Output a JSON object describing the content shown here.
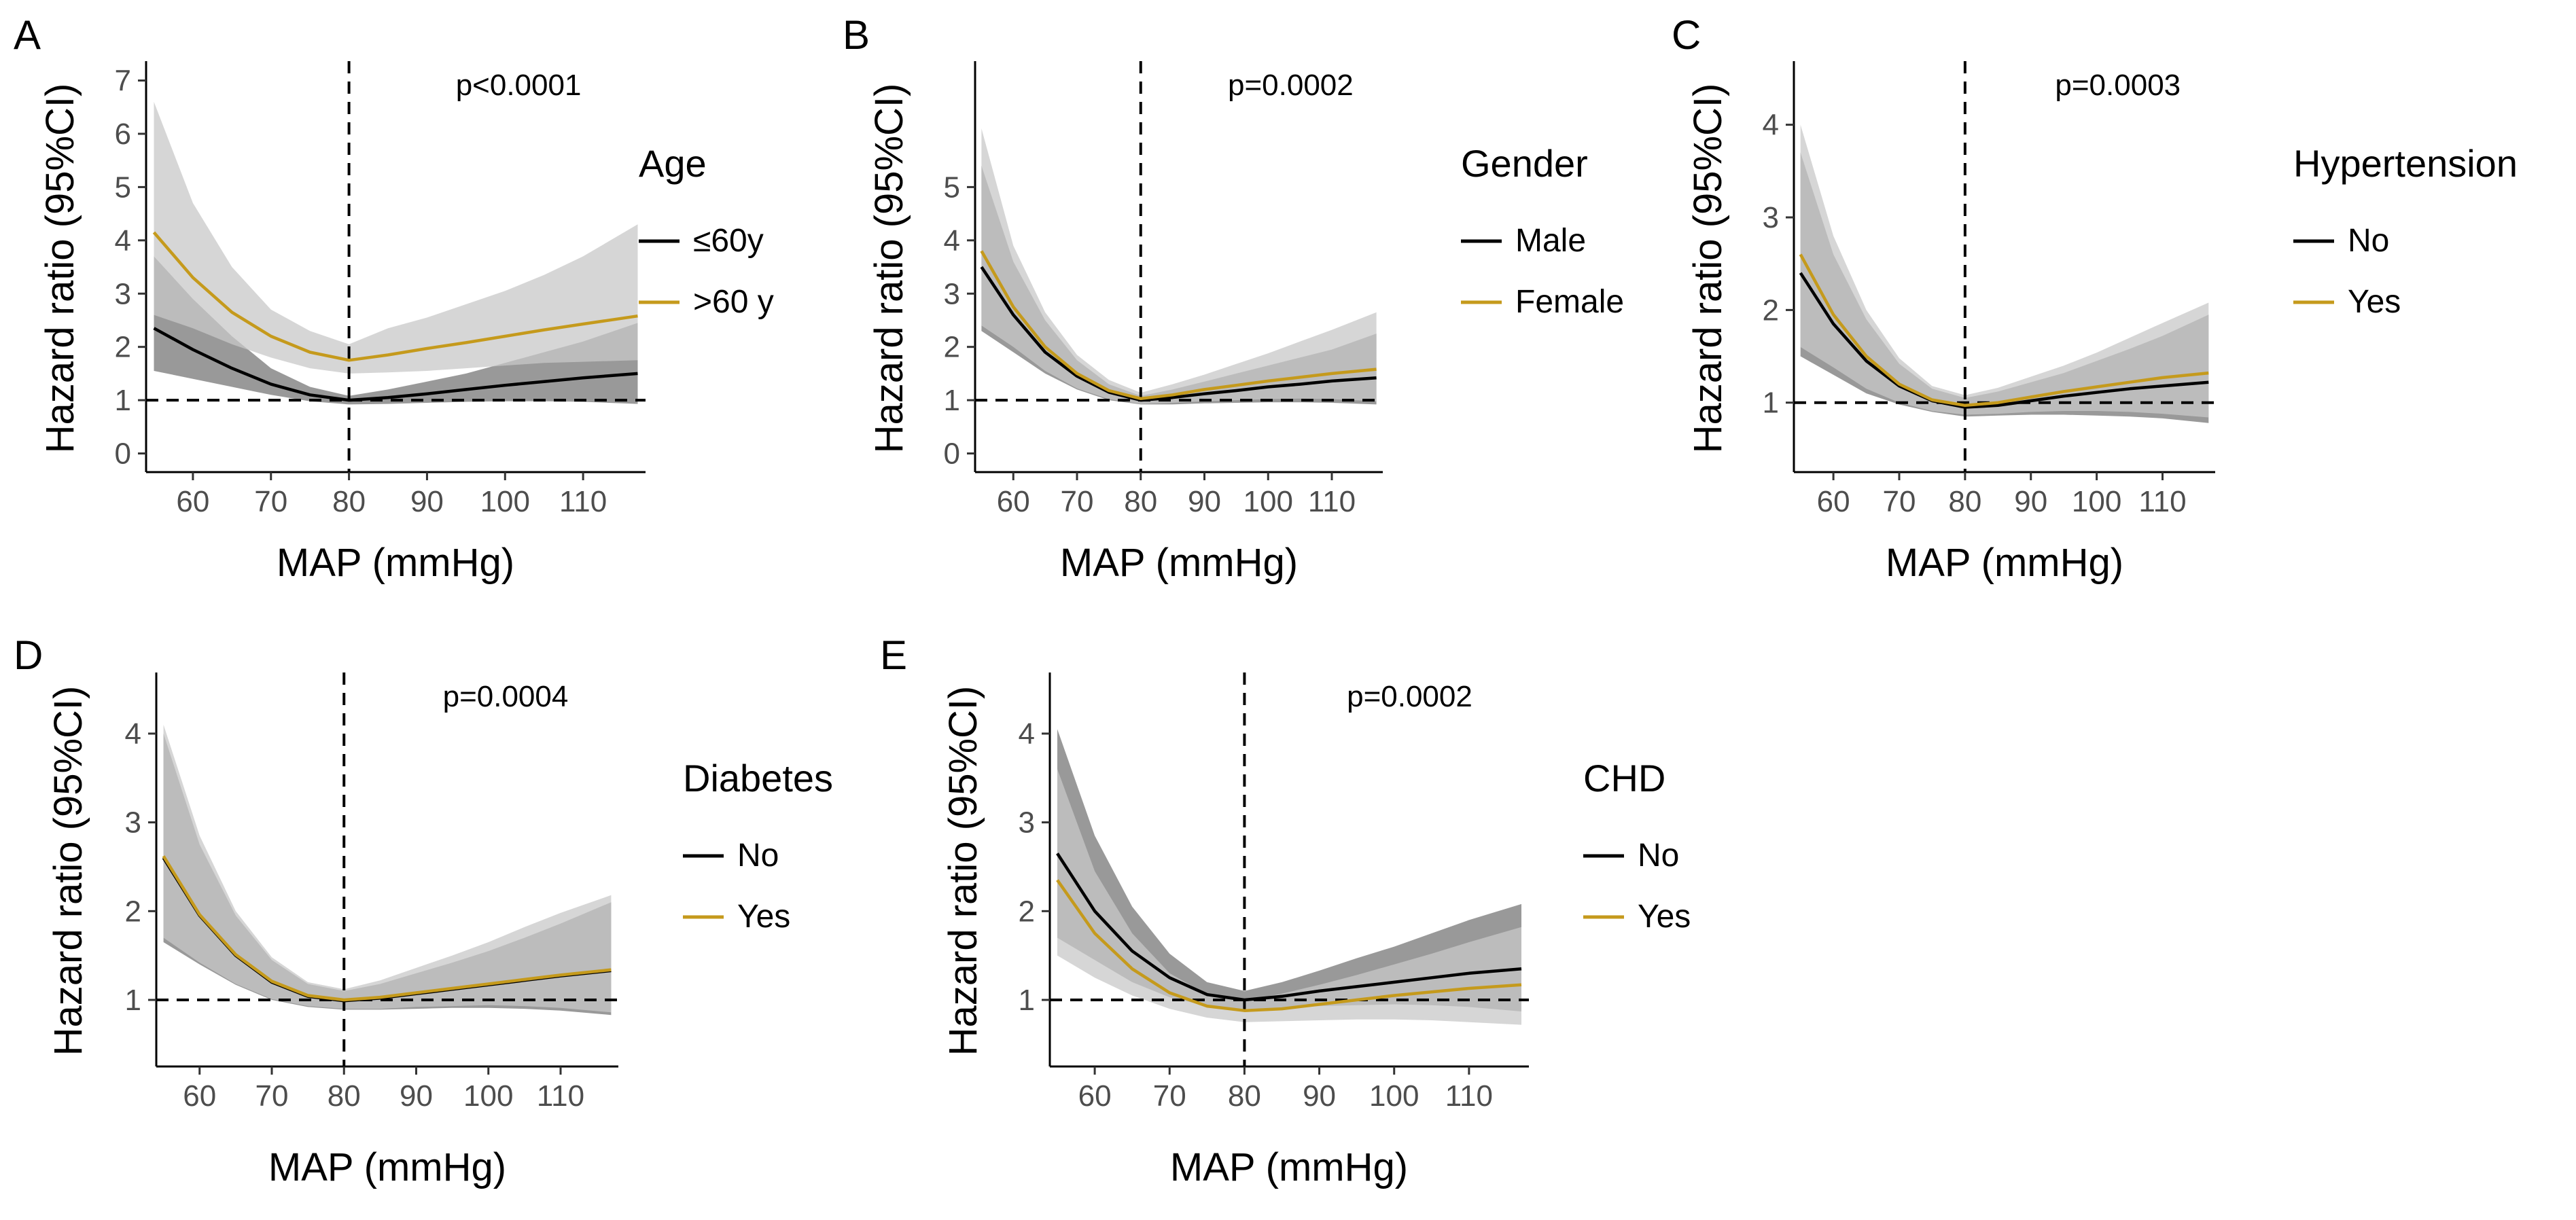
{
  "figure": {
    "x_label": "MAP (mmHg)",
    "y_label": "Hazard ratio (95%CI)"
  },
  "colors": {
    "series1_line": "#000000",
    "series2_line": "#c59a1c",
    "band_light": "#c8c8c8",
    "band_dark": "#6e6e6e"
  },
  "chart_data": [
    {
      "type": "line",
      "panel": "A",
      "p_value": "p<0.0001",
      "legend_title": "Age",
      "reference_x": 80,
      "reference_y": 1,
      "xlim": [
        54,
        118
      ],
      "ylim": [
        -0.35,
        7.3
      ],
      "x_ticks": [
        60,
        70,
        80,
        90,
        100,
        110
      ],
      "y_ticks": [
        0,
        1,
        2,
        3,
        4,
        5,
        6,
        7
      ],
      "series": [
        {
          "name": "≤60y",
          "x": [
            55,
            60,
            65,
            70,
            75,
            80,
            85,
            90,
            95,
            100,
            105,
            110,
            117
          ],
          "y": [
            2.35,
            1.95,
            1.6,
            1.3,
            1.1,
            1.0,
            1.05,
            1.12,
            1.2,
            1.28,
            1.35,
            1.42,
            1.5
          ],
          "lower": [
            1.55,
            1.4,
            1.25,
            1.1,
            0.98,
            0.92,
            0.93,
            0.95,
            0.97,
            0.98,
            0.98,
            0.97,
            0.93
          ],
          "upper": [
            3.7,
            2.9,
            2.2,
            1.6,
            1.25,
            1.08,
            1.2,
            1.35,
            1.5,
            1.7,
            1.9,
            2.1,
            2.45
          ]
        },
        {
          "name": ">60 y",
          "x": [
            55,
            60,
            65,
            70,
            75,
            80,
            85,
            90,
            95,
            100,
            105,
            110,
            117
          ],
          "y": [
            4.15,
            3.3,
            2.65,
            2.2,
            1.9,
            1.75,
            1.85,
            1.97,
            2.08,
            2.2,
            2.32,
            2.43,
            2.58
          ],
          "lower": [
            2.6,
            2.35,
            2.05,
            1.8,
            1.6,
            1.5,
            1.52,
            1.55,
            1.6,
            1.65,
            1.7,
            1.72,
            1.75
          ],
          "upper": [
            6.6,
            4.7,
            3.5,
            2.7,
            2.3,
            2.05,
            2.35,
            2.55,
            2.8,
            3.05,
            3.35,
            3.7,
            4.3
          ]
        }
      ]
    },
    {
      "type": "line",
      "panel": "B",
      "p_value": "p=0.0002",
      "legend_title": "Gender",
      "reference_x": 80,
      "reference_y": 1,
      "xlim": [
        54,
        118
      ],
      "ylim": [
        -0.35,
        7.3
      ],
      "x_ticks": [
        60,
        70,
        80,
        90,
        100,
        110
      ],
      "y_ticks": [
        0,
        1,
        2,
        3,
        4,
        5
      ],
      "series": [
        {
          "name": "Male",
          "x": [
            55,
            60,
            65,
            70,
            75,
            80,
            85,
            90,
            95,
            100,
            105,
            110,
            117
          ],
          "y": [
            3.5,
            2.6,
            1.9,
            1.45,
            1.15,
            1.0,
            1.05,
            1.12,
            1.18,
            1.25,
            1.3,
            1.36,
            1.42
          ],
          "lower": [
            2.3,
            1.9,
            1.5,
            1.2,
            1.0,
            0.92,
            0.92,
            0.94,
            0.95,
            0.96,
            0.96,
            0.95,
            0.92
          ],
          "upper": [
            5.4,
            3.6,
            2.5,
            1.75,
            1.3,
            1.08,
            1.2,
            1.35,
            1.5,
            1.65,
            1.8,
            1.95,
            2.25
          ]
        },
        {
          "name": "Female",
          "x": [
            55,
            60,
            65,
            70,
            75,
            80,
            85,
            90,
            95,
            100,
            105,
            110,
            117
          ],
          "y": [
            3.8,
            2.75,
            2.0,
            1.5,
            1.18,
            1.03,
            1.1,
            1.2,
            1.28,
            1.36,
            1.43,
            1.5,
            1.58
          ],
          "lower": [
            2.4,
            2.0,
            1.55,
            1.22,
            1.02,
            0.93,
            0.95,
            0.98,
            1.0,
            1.02,
            1.03,
            1.02,
            0.98
          ],
          "upper": [
            6.1,
            3.9,
            2.65,
            1.85,
            1.38,
            1.14,
            1.3,
            1.48,
            1.68,
            1.88,
            2.1,
            2.32,
            2.65
          ]
        }
      ]
    },
    {
      "type": "line",
      "panel": "C",
      "p_value": "p=0.0003",
      "legend_title": "Hypertension",
      "reference_x": 80,
      "reference_y": 1,
      "xlim": [
        54,
        118
      ],
      "ylim": [
        0.25,
        4.65
      ],
      "x_ticks": [
        60,
        70,
        80,
        90,
        100,
        110
      ],
      "y_ticks": [
        1,
        2,
        3,
        4
      ],
      "series": [
        {
          "name": "No",
          "x": [
            55,
            60,
            65,
            70,
            75,
            80,
            85,
            90,
            95,
            100,
            105,
            110,
            117
          ],
          "y": [
            2.4,
            1.85,
            1.45,
            1.18,
            1.02,
            0.95,
            0.97,
            1.02,
            1.07,
            1.11,
            1.15,
            1.18,
            1.22
          ],
          "lower": [
            1.5,
            1.3,
            1.1,
            0.98,
            0.9,
            0.85,
            0.86,
            0.87,
            0.87,
            0.86,
            0.85,
            0.83,
            0.78
          ],
          "upper": [
            3.7,
            2.6,
            1.9,
            1.42,
            1.15,
            1.05,
            1.12,
            1.22,
            1.32,
            1.45,
            1.58,
            1.72,
            1.95
          ]
        },
        {
          "name": "Yes",
          "x": [
            55,
            60,
            65,
            70,
            75,
            80,
            85,
            90,
            95,
            100,
            105,
            110,
            117
          ],
          "y": [
            2.6,
            1.95,
            1.5,
            1.2,
            1.03,
            0.97,
            1.0,
            1.06,
            1.12,
            1.17,
            1.22,
            1.27,
            1.32
          ],
          "lower": [
            1.6,
            1.38,
            1.15,
            1.0,
            0.91,
            0.87,
            0.88,
            0.9,
            0.91,
            0.91,
            0.9,
            0.88,
            0.84
          ],
          "upper": [
            4.0,
            2.8,
            2.0,
            1.48,
            1.18,
            1.08,
            1.16,
            1.28,
            1.4,
            1.54,
            1.7,
            1.86,
            2.08
          ]
        }
      ]
    },
    {
      "type": "line",
      "panel": "D",
      "p_value": "p=0.0004",
      "legend_title": "Diabetes",
      "reference_x": 80,
      "reference_y": 1,
      "xlim": [
        54,
        118
      ],
      "ylim": [
        0.25,
        4.65
      ],
      "x_ticks": [
        60,
        70,
        80,
        90,
        100,
        110
      ],
      "y_ticks": [
        1,
        2,
        3,
        4
      ],
      "series": [
        {
          "name": "No",
          "x": [
            55,
            60,
            65,
            70,
            75,
            80,
            85,
            90,
            95,
            100,
            105,
            110,
            117
          ],
          "y": [
            2.6,
            1.95,
            1.5,
            1.2,
            1.04,
            0.99,
            1.02,
            1.07,
            1.12,
            1.17,
            1.22,
            1.27,
            1.33
          ],
          "lower": [
            1.65,
            1.4,
            1.17,
            1.0,
            0.92,
            0.89,
            0.89,
            0.9,
            0.91,
            0.91,
            0.9,
            0.88,
            0.83
          ],
          "upper": [
            4.0,
            2.75,
            1.95,
            1.45,
            1.18,
            1.1,
            1.18,
            1.3,
            1.42,
            1.55,
            1.7,
            1.86,
            2.1
          ]
        },
        {
          "name": "Yes",
          "x": [
            55,
            60,
            65,
            70,
            75,
            80,
            85,
            90,
            95,
            100,
            105,
            110,
            117
          ],
          "y": [
            2.62,
            1.96,
            1.51,
            1.21,
            1.05,
            1.0,
            1.03,
            1.08,
            1.13,
            1.18,
            1.23,
            1.28,
            1.34
          ],
          "lower": [
            1.7,
            1.42,
            1.18,
            1.01,
            0.93,
            0.9,
            0.9,
            0.92,
            0.93,
            0.94,
            0.93,
            0.91,
            0.86
          ],
          "upper": [
            4.1,
            2.85,
            2.0,
            1.48,
            1.2,
            1.12,
            1.22,
            1.36,
            1.5,
            1.65,
            1.82,
            1.98,
            2.18
          ]
        }
      ]
    },
    {
      "type": "line",
      "panel": "E",
      "p_value": "p=0.0002",
      "legend_title": "CHD",
      "reference_x": 80,
      "reference_y": 1,
      "xlim": [
        54,
        118
      ],
      "ylim": [
        0.25,
        4.65
      ],
      "x_ticks": [
        60,
        70,
        80,
        90,
        100,
        110
      ],
      "y_ticks": [
        1,
        2,
        3,
        4
      ],
      "series": [
        {
          "name": "No",
          "x": [
            55,
            60,
            65,
            70,
            75,
            80,
            85,
            90,
            95,
            100,
            105,
            110,
            117
          ],
          "y": [
            2.65,
            2.0,
            1.55,
            1.25,
            1.06,
            1.0,
            1.04,
            1.1,
            1.15,
            1.2,
            1.25,
            1.3,
            1.35
          ],
          "lower": [
            1.7,
            1.45,
            1.2,
            1.03,
            0.93,
            0.9,
            0.91,
            0.93,
            0.94,
            0.95,
            0.94,
            0.92,
            0.87
          ],
          "upper": [
            4.05,
            2.85,
            2.05,
            1.52,
            1.2,
            1.1,
            1.2,
            1.33,
            1.47,
            1.6,
            1.75,
            1.9,
            2.08
          ]
        },
        {
          "name": "Yes",
          "x": [
            55,
            60,
            65,
            70,
            75,
            80,
            85,
            90,
            95,
            100,
            105,
            110,
            117
          ],
          "y": [
            2.35,
            1.75,
            1.35,
            1.08,
            0.93,
            0.88,
            0.9,
            0.95,
            1.0,
            1.05,
            1.09,
            1.13,
            1.17
          ],
          "lower": [
            1.5,
            1.25,
            1.05,
            0.9,
            0.8,
            0.75,
            0.76,
            0.77,
            0.78,
            0.78,
            0.77,
            0.75,
            0.72
          ],
          "upper": [
            3.6,
            2.45,
            1.75,
            1.3,
            1.06,
            0.99,
            1.07,
            1.17,
            1.28,
            1.4,
            1.52,
            1.65,
            1.82
          ]
        }
      ]
    }
  ]
}
